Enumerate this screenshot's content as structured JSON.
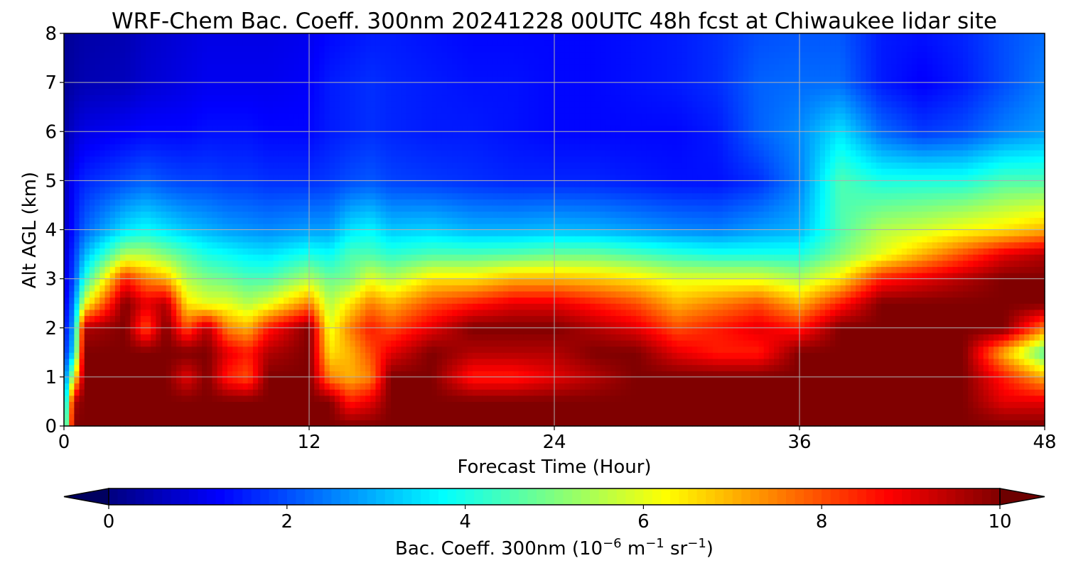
{
  "chart_data": {
    "type": "heatmap",
    "title": "WRF-Chem Bac. Coeff. 300nm  20241228 00UTC 48h fcst at Chiwaukee lidar site",
    "xlabel": "Forecast Time (Hour)",
    "ylabel": "Alt AGL (km)",
    "xlim": [
      0,
      48
    ],
    "ylim": [
      0,
      8
    ],
    "xticks": [
      "0",
      "12",
      "24",
      "36",
      "48"
    ],
    "yticks": [
      "0",
      "1",
      "2",
      "3",
      "4",
      "5",
      "6",
      "7",
      "8"
    ],
    "grid": true,
    "colormap": "jet",
    "colorbar": {
      "orientation": "horizontal",
      "placement": "bottom",
      "range": [
        0,
        10
      ],
      "extend": "both",
      "ticks": [
        "0",
        "2",
        "4",
        "6",
        "8",
        "10"
      ],
      "label_prefix": "Bac. Coeff. 300nm  (10",
      "label_exp1": "−6",
      "label_mid": " m",
      "label_exp2": "−1",
      "label_mid2": " sr",
      "label_exp3": "−1",
      "label_suffix": ")"
    },
    "x": [
      0,
      0.5,
      1,
      3,
      4,
      5,
      6,
      7,
      8,
      9,
      10,
      12,
      13,
      14,
      15,
      16,
      18,
      20,
      22,
      24,
      26,
      28,
      30,
      32,
      34,
      36,
      38,
      40,
      42,
      44,
      46,
      48
    ],
    "z": [
      0,
      0.5,
      1,
      1.5,
      2,
      2.5,
      3,
      3.5,
      4,
      5,
      6,
      7,
      8
    ],
    "values_note_key": "rows indexed by x, columns by z",
    "values": [
      [
        3.0,
        2.5,
        2.0,
        1.5,
        1.2,
        1.0,
        0.8,
        0.7,
        0.6,
        0.5,
        0.3,
        0.2,
        0.2
      ],
      [
        10.0,
        9.5,
        6.0,
        3.5,
        3.0,
        2.5,
        2.0,
        1.8,
        1.5,
        1.3,
        0.8,
        0.4,
        0.3
      ],
      [
        10.0,
        10.0,
        10.0,
        10.0,
        9.5,
        6.0,
        4.0,
        3.0,
        2.2,
        1.6,
        1.0,
        0.5,
        0.4
      ],
      [
        10.0,
        10.0,
        10.0,
        10.0,
        10.0,
        10.0,
        8.5,
        5.5,
        3.5,
        2.0,
        1.2,
        0.6,
        0.5
      ],
      [
        10.0,
        10.0,
        10.0,
        10.0,
        8.0,
        9.0,
        7.5,
        5.5,
        3.8,
        2.2,
        1.3,
        0.8,
        0.7
      ],
      [
        10.0,
        10.0,
        10.0,
        10.0,
        10.0,
        9.5,
        7.0,
        5.0,
        3.5,
        2.0,
        1.3,
        0.9,
        0.8
      ],
      [
        10.0,
        10.0,
        9.0,
        10.0,
        8.0,
        6.5,
        5.5,
        4.5,
        3.2,
        1.9,
        1.3,
        1.0,
        0.9
      ],
      [
        10.0,
        10.0,
        10.0,
        10.0,
        9.5,
        6.0,
        5.0,
        4.0,
        3.0,
        1.9,
        1.4,
        1.1,
        1.0
      ],
      [
        10.0,
        10.0,
        8.5,
        9.0,
        7.5,
        6.0,
        4.8,
        3.8,
        2.8,
        1.8,
        1.4,
        1.1,
        1.0
      ],
      [
        10.0,
        10.0,
        8.0,
        8.5,
        7.0,
        5.5,
        4.5,
        3.6,
        2.7,
        1.8,
        1.4,
        1.1,
        1.0
      ],
      [
        10.0,
        10.0,
        10.0,
        9.5,
        8.5,
        6.0,
        4.5,
        3.5,
        2.6,
        1.7,
        1.3,
        1.1,
        1.0
      ],
      [
        10.0,
        10.0,
        10.0,
        10.0,
        10.0,
        7.5,
        5.5,
        4.0,
        2.8,
        1.7,
        1.3,
        1.2,
        1.1
      ],
      [
        10.0,
        10.0,
        7.5,
        6.5,
        6.0,
        5.5,
        4.8,
        3.8,
        2.8,
        1.8,
        1.5,
        1.5,
        1.3
      ],
      [
        10.0,
        8.5,
        7.0,
        7.0,
        7.5,
        6.5,
        5.0,
        4.5,
        3.5,
        2.0,
        1.6,
        1.6,
        1.4
      ],
      [
        10.0,
        9.0,
        7.5,
        8.0,
        8.5,
        7.5,
        6.0,
        4.5,
        3.7,
        2.1,
        1.7,
        1.7,
        1.5
      ],
      [
        10.0,
        10.0,
        10.0,
        9.0,
        8.0,
        7.0,
        5.5,
        4.2,
        3.2,
        1.9,
        1.6,
        1.6,
        1.5
      ],
      [
        10.0,
        10.0,
        10.0,
        10.0,
        9.0,
        8.0,
        6.5,
        4.5,
        3.3,
        1.8,
        1.5,
        1.5,
        1.4
      ],
      [
        10.0,
        10.0,
        8.5,
        9.5,
        10.0,
        8.5,
        6.5,
        4.5,
        3.0,
        1.7,
        1.5,
        1.4,
        1.3
      ],
      [
        10.0,
        10.0,
        8.5,
        9.5,
        10.0,
        9.0,
        7.0,
        4.6,
        3.0,
        1.6,
        1.4,
        1.4,
        1.3
      ],
      [
        10.0,
        10.0,
        9.0,
        9.5,
        10.0,
        9.0,
        7.0,
        4.8,
        3.1,
        1.6,
        1.3,
        1.3,
        1.3
      ],
      [
        10.0,
        10.0,
        9.5,
        10.0,
        9.5,
        8.5,
        6.8,
        4.8,
        3.0,
        1.6,
        1.3,
        1.3,
        1.3
      ],
      [
        10.0,
        10.0,
        10.0,
        10.0,
        9.0,
        8.0,
        6.5,
        4.5,
        2.8,
        1.5,
        1.3,
        1.4,
        1.4
      ],
      [
        10.0,
        10.0,
        10.0,
        9.0,
        8.0,
        7.0,
        6.0,
        4.2,
        2.6,
        1.4,
        1.3,
        1.5,
        1.5
      ],
      [
        10.0,
        10.0,
        10.0,
        8.5,
        8.5,
        7.5,
        6.0,
        4.0,
        2.5,
        1.4,
        1.5,
        1.7,
        1.7
      ],
      [
        10.0,
        10.0,
        10.0,
        8.5,
        9.0,
        8.0,
        6.0,
        4.0,
        2.8,
        1.7,
        2.2,
        2.2,
        2.0
      ],
      [
        10.0,
        10.0,
        10.0,
        10.0,
        8.5,
        7.0,
        5.5,
        4.0,
        3.0,
        2.5,
        2.6,
        2.3,
        2.1
      ],
      [
        10.0,
        10.0,
        10.0,
        10.0,
        10.0,
        8.5,
        6.5,
        5.0,
        4.5,
        4.5,
        3.5,
        2.3,
        2.1
      ],
      [
        10.0,
        10.0,
        10.0,
        10.0,
        10.0,
        10.0,
        8.5,
        6.0,
        5.5,
        4.0,
        2.3,
        1.5,
        1.5
      ],
      [
        10.0,
        10.0,
        10.0,
        10.0,
        10.0,
        10.0,
        9.0,
        7.0,
        5.8,
        4.0,
        1.8,
        1.2,
        1.4
      ],
      [
        10.0,
        10.0,
        10.0,
        10.0,
        10.0,
        10.0,
        9.5,
        8.0,
        6.2,
        4.0,
        2.0,
        1.5,
        1.6
      ],
      [
        10.0,
        9.0,
        8.5,
        7.0,
        10.0,
        10.0,
        10.0,
        9.0,
        6.5,
        4.5,
        2.5,
        2.0,
        2.0
      ],
      [
        10.0,
        9.0,
        7.0,
        4.5,
        7.5,
        10.0,
        10.0,
        9.5,
        7.0,
        4.5,
        2.8,
        2.5,
        2.3
      ]
    ]
  }
}
